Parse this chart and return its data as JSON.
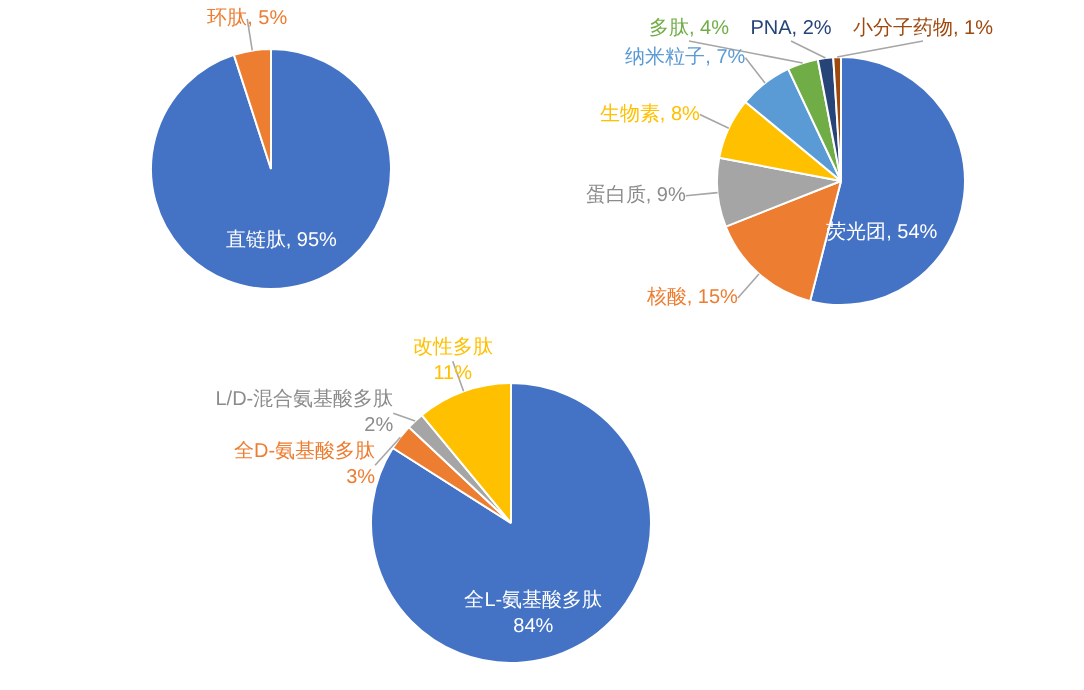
{
  "chart_data": [
    {
      "type": "pie",
      "categories": [
        "直链肽",
        "环肽"
      ],
      "values": [
        95,
        5
      ],
      "value_labels": [
        "95%",
        "5%"
      ],
      "colors": [
        "#4472c4",
        "#ed7d31"
      ]
    },
    {
      "type": "pie",
      "categories": [
        "荧光团",
        "核酸",
        "蛋白质",
        "生物素",
        "纳米粒子",
        "多肽",
        "PNA",
        "小分子药物"
      ],
      "values": [
        54,
        15,
        9,
        8,
        7,
        4,
        2,
        1
      ],
      "value_labels": [
        "54%",
        "15%",
        "9%",
        "8%",
        "7%",
        "4%",
        "2%",
        "1%"
      ],
      "colors": [
        "#4472c4",
        "#ed7d31",
        "#a5a5a5",
        "#ffc000",
        "#5b9bd5",
        "#70ad47",
        "#264478",
        "#9e480e"
      ]
    },
    {
      "type": "pie",
      "categories": [
        "全L-氨基酸多肽",
        "全D-氨基酸多肽",
        "L/D-混合氨基酸多肽",
        "改性多肽"
      ],
      "values": [
        84,
        3,
        2,
        11
      ],
      "value_labels": [
        "84%",
        "3%",
        "2%",
        "11%"
      ],
      "colors": [
        "#4472c4",
        "#ed7d31",
        "#a5a5a5",
        "#ffc000"
      ]
    }
  ]
}
